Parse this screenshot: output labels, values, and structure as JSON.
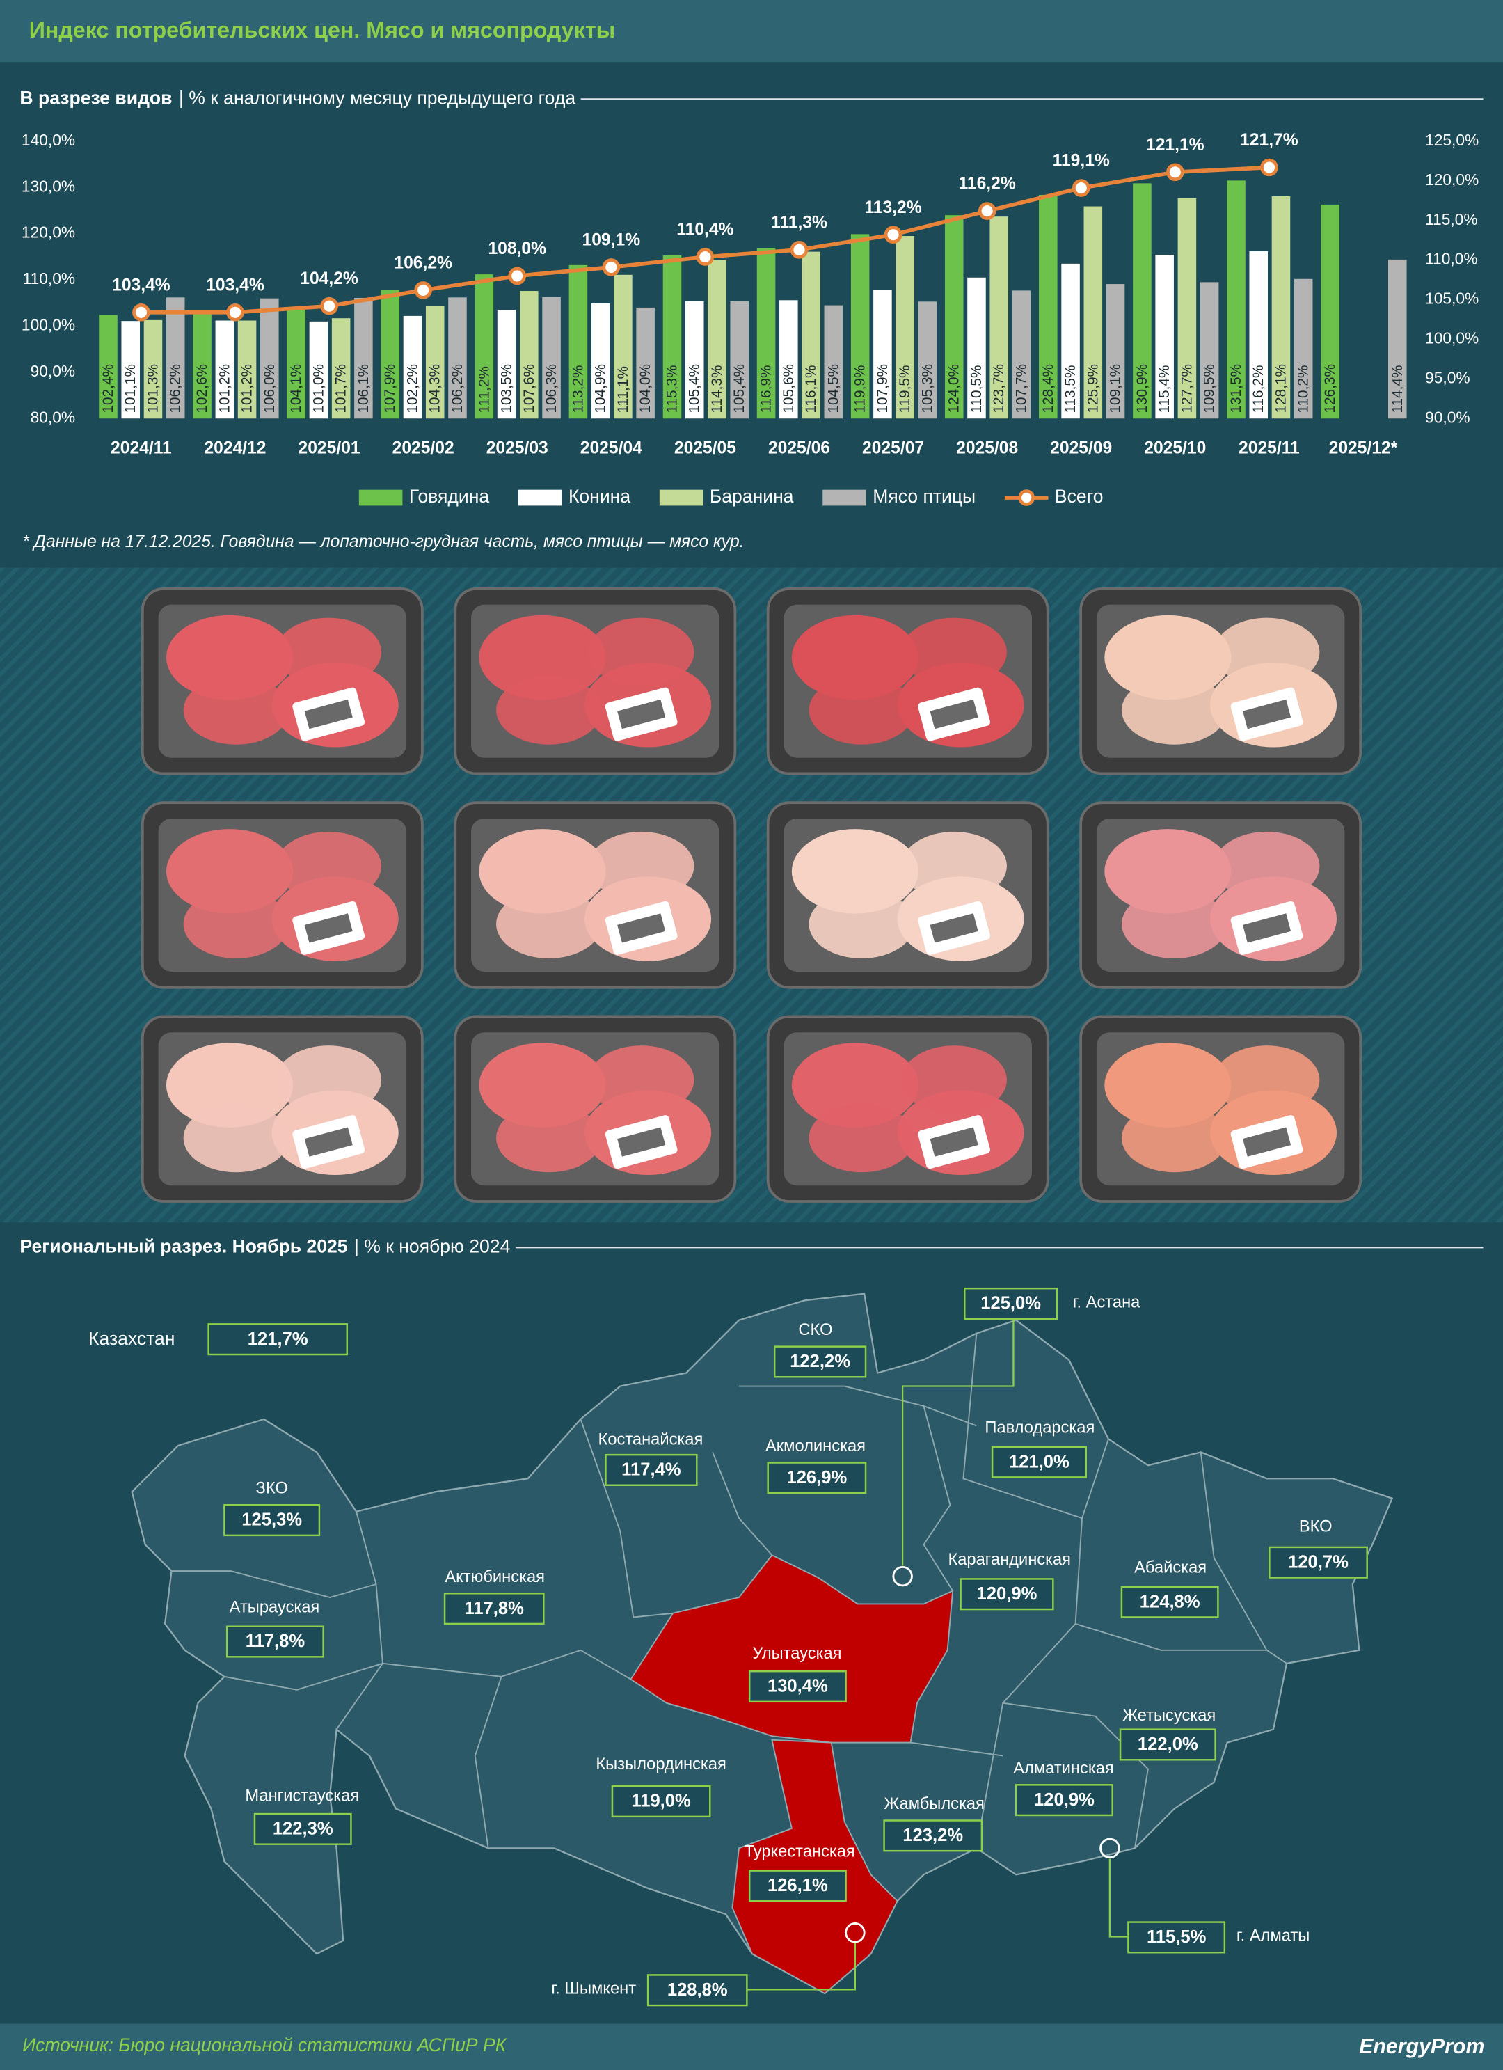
{
  "header": {
    "title": "Индекс потребительских цен. Мясо и мясопродукты"
  },
  "chart_data": {
    "type": "bar",
    "title": "В разрезе видов",
    "subtitle": "| % к аналогичному месяцу предыдущего года",
    "categories": [
      "2024/11",
      "2024/12",
      "2025/01",
      "2025/02",
      "2025/03",
      "2025/04",
      "2025/05",
      "2025/06",
      "2025/07",
      "2025/08",
      "2025/09",
      "2025/10",
      "2025/11",
      "2025/12*"
    ],
    "series": [
      {
        "name": "Говядина",
        "color": "#6cc24a",
        "values": [
          102.4,
          102.6,
          104.1,
          107.9,
          111.2,
          113.2,
          115.3,
          116.9,
          119.9,
          124.0,
          128.4,
          130.9,
          131.5,
          126.3
        ],
        "value_labels": [
          "102,4%",
          "102,6%",
          "104,1%",
          "107,9%",
          "111,2%",
          "113,2%",
          "115,3%",
          "116,9%",
          "119,9%",
          "124,0%",
          "128,4%",
          "130,9%",
          "131,5%",
          "126,3%"
        ]
      },
      {
        "name": "Конина",
        "color": "#ffffff",
        "values": [
          101.1,
          101.2,
          101.0,
          102.2,
          103.5,
          104.9,
          105.4,
          105.6,
          107.9,
          110.5,
          113.5,
          115.4,
          116.2,
          null
        ],
        "value_labels": [
          "101,1%",
          "101,2%",
          "101,0%",
          "102,2%",
          "103,5%",
          "104,9%",
          "105,4%",
          "105,6%",
          "107,9%",
          "110,5%",
          "113,5%",
          "115,4%",
          "116,2%",
          null
        ]
      },
      {
        "name": "Баранина",
        "color": "#c4db98",
        "values": [
          101.3,
          101.2,
          101.7,
          104.3,
          107.6,
          111.1,
          114.3,
          116.1,
          119.5,
          123.7,
          125.9,
          127.7,
          128.1,
          null
        ],
        "value_labels": [
          "101,3%",
          "101,2%",
          "101,7%",
          "104,3%",
          "107,6%",
          "111,1%",
          "114,3%",
          "116,1%",
          "119,5%",
          "123,7%",
          "125,9%",
          "127,7%",
          "128,1%",
          null
        ]
      },
      {
        "name": "Мясо птицы",
        "color": "#b4b4b4",
        "values": [
          106.2,
          106.0,
          106.1,
          106.2,
          106.3,
          104.0,
          105.4,
          104.5,
          105.3,
          107.7,
          109.1,
          109.5,
          110.2,
          114.4
        ],
        "value_labels": [
          "106,2%",
          "106,0%",
          "106,1%",
          "106,2%",
          "106,3%",
          "104,0%",
          "105,4%",
          "104,5%",
          "105,3%",
          "107,7%",
          "109,1%",
          "109,5%",
          "110,2%",
          "114,4%"
        ]
      },
      {
        "name": "Всего",
        "type": "line",
        "axis": "y2",
        "color": "#e8833a",
        "values": [
          103.4,
          103.4,
          104.2,
          106.2,
          108.0,
          109.1,
          110.4,
          111.3,
          113.2,
          116.2,
          119.1,
          121.1,
          121.7,
          null
        ],
        "value_labels": [
          "103,4%",
          "103,4%",
          "104,2%",
          "106,2%",
          "108,0%",
          "109,1%",
          "110,4%",
          "111,3%",
          "113,2%",
          "116,2%",
          "119,1%",
          "121,1%",
          "121,7%",
          null
        ]
      }
    ],
    "ylim": [
      80,
      140
    ],
    "yticks": [
      {
        "value": 80,
        "label": "80,0%"
      },
      {
        "value": 90,
        "label": "90,0%"
      },
      {
        "value": 100,
        "label": "100,0%"
      },
      {
        "value": 110,
        "label": "110,0%"
      },
      {
        "value": 120,
        "label": "120,0%"
      },
      {
        "value": 130,
        "label": "130,0%"
      },
      {
        "value": 140,
        "label": "140,0%"
      }
    ],
    "y2lim": [
      90,
      125
    ],
    "y2ticks": [
      {
        "value": 90,
        "label": "90,0%"
      },
      {
        "value": 95,
        "label": "95,0%"
      },
      {
        "value": 100,
        "label": "100,0%"
      },
      {
        "value": 105,
        "label": "105,0%"
      },
      {
        "value": 110,
        "label": "110,0%"
      },
      {
        "value": 115,
        "label": "115,0%"
      },
      {
        "value": 120,
        "label": "120,0%"
      },
      {
        "value": 125,
        "label": "125,0%"
      }
    ],
    "legend": "bottom",
    "note": "* Данные на 17.12.2025. Говядина — лопаточно-грудная часть, мясо птицы — мясо кур."
  },
  "map": {
    "title": "Региональный разрез. Ноябрь 2025",
    "subtitle": "| % к ноябрю 2024",
    "regions": [
      {
        "name": "Казахстан",
        "value": "121,7%"
      },
      {
        "name": "г. Астана",
        "value": "125,0%"
      },
      {
        "name": "СКО",
        "value": "122,2%"
      },
      {
        "name": "Костанайская",
        "value": "117,4%"
      },
      {
        "name": "Акмолинская",
        "value": "126,9%"
      },
      {
        "name": "Павлодарская",
        "value": "121,0%"
      },
      {
        "name": "ЗКО",
        "value": "125,3%"
      },
      {
        "name": "Актюбинская",
        "value": "117,8%"
      },
      {
        "name": "Атырауская",
        "value": "117,8%"
      },
      {
        "name": "Карагандинская",
        "value": "120,9%"
      },
      {
        "name": "Абайская",
        "value": "124,8%"
      },
      {
        "name": "ВКО",
        "value": "120,7%"
      },
      {
        "name": "Улытауская",
        "value": "130,4%"
      },
      {
        "name": "Жетысуская",
        "value": "122,0%"
      },
      {
        "name": "Мангистауская",
        "value": "122,3%"
      },
      {
        "name": "Кызылординская",
        "value": "119,0%"
      },
      {
        "name": "Алматинская",
        "value": "120,9%"
      },
      {
        "name": "Жамбылская",
        "value": "123,2%"
      },
      {
        "name": "Туркестанская",
        "value": "126,1%"
      },
      {
        "name": "г. Алматы",
        "value": "115,5%"
      },
      {
        "name": "г. Шымкент",
        "value": "128,8%"
      }
    ]
  },
  "footer": {
    "source": "Источник: Бюро национальной статистики АСПиР РК",
    "logo": "EnergyProm"
  }
}
